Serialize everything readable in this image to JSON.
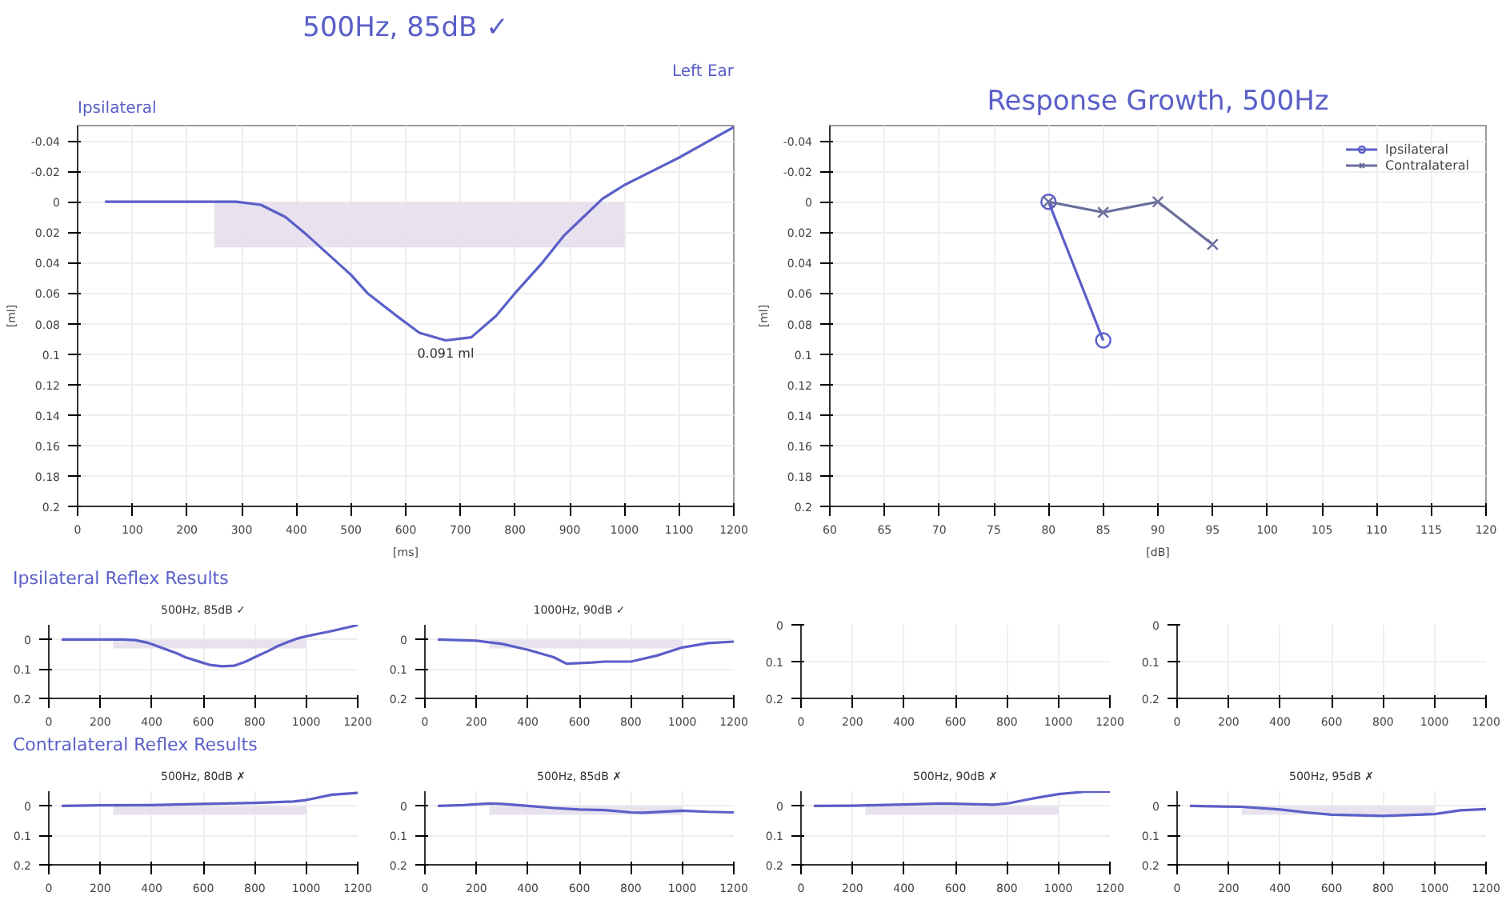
{
  "chart_data": [
    {
      "type": "line",
      "title": "500Hz, 85dB ✓",
      "annotations": [
        "Ipsilateral",
        "Left Ear",
        {
          "text": "0.091 ml",
          "x": 673,
          "y": 0.091
        }
      ],
      "xlabel": "[ms]",
      "ylabel": "[ml]",
      "xlim": [
        0,
        1200
      ],
      "ylim": [
        0.2,
        -0.05
      ],
      "xticks": [
        0,
        100,
        200,
        300,
        400,
        500,
        600,
        700,
        800,
        900,
        1000,
        1100,
        1200
      ],
      "yticks": [
        -0.04,
        -0.02,
        0,
        0.02,
        0.04,
        0.06,
        0.08,
        0.1,
        0.12,
        0.14,
        0.16,
        0.18,
        0.2
      ],
      "grid": true,
      "series": [
        {
          "type": "area",
          "color": "#e4dfec",
          "x": [
            250,
            1000
          ],
          "values": [
            0.03,
            0.03
          ]
        },
        {
          "color": "#5a5fc8",
          "x": [
            50,
            290,
            335,
            380,
            420,
            460,
            500,
            530,
            580,
            625,
            673,
            720,
            765,
            800,
            850,
            890,
            925,
            960,
            1000,
            1050,
            1100,
            1150,
            1200
          ],
          "values": [
            0,
            0,
            0.002,
            0.01,
            0.022,
            0.035,
            0.048,
            0.06,
            0.074,
            0.086,
            0.091,
            0.089,
            0.075,
            0.06,
            0.04,
            0.022,
            0.01,
            -0.002,
            -0.011,
            -0.02,
            -0.029,
            -0.039,
            -0.049
          ]
        }
      ]
    },
    {
      "type": "line",
      "title": "Response Growth, 500Hz",
      "xlabel": "[dB]",
      "ylabel": "[ml]",
      "xlim": [
        60,
        120
      ],
      "ylim": [
        0.2,
        -0.05
      ],
      "xticks": [
        60,
        65,
        70,
        75,
        80,
        85,
        90,
        95,
        100,
        105,
        110,
        115,
        120
      ],
      "yticks": [
        -0.04,
        -0.02,
        0,
        0.02,
        0.04,
        0.06,
        0.08,
        0.1,
        0.12,
        0.14,
        0.16,
        0.18,
        0.2
      ],
      "grid": true,
      "legend": "top right",
      "series": [
        {
          "name": "Ipsilateral",
          "color": "#5a5fc8",
          "marker": "circle",
          "x": [
            80,
            85
          ],
          "values": [
            0,
            0.091
          ]
        },
        {
          "name": "Contralateral",
          "color": "#6a6e9c",
          "marker": "cross",
          "x": [
            80,
            85,
            90,
            95
          ],
          "values": [
            0,
            0.007,
            0,
            0.028
          ]
        }
      ]
    },
    {
      "type": "line",
      "title": "500Hz, 85dB ✓",
      "annotations": [
        "Ipsilateral Reflex Results"
      ],
      "xlim": [
        0,
        1200
      ],
      "ylim": [
        0.2,
        -0.05
      ],
      "xticks": [
        0,
        200,
        400,
        600,
        800,
        1000,
        1200
      ],
      "yticks": [
        0,
        0.1,
        0.2
      ],
      "grid": true,
      "series": [
        {
          "type": "area",
          "color": "#e4dfec",
          "x": [
            250,
            1000
          ],
          "values": [
            0.03,
            0.03
          ]
        },
        {
          "color": "#5a5fc8",
          "x": [
            50,
            290,
            335,
            380,
            420,
            460,
            500,
            530,
            580,
            625,
            673,
            720,
            765,
            800,
            850,
            890,
            925,
            960,
            1000,
            1050,
            1100,
            1150,
            1200
          ],
          "values": [
            0,
            0,
            0.002,
            0.01,
            0.022,
            0.035,
            0.048,
            0.06,
            0.074,
            0.086,
            0.091,
            0.089,
            0.075,
            0.06,
            0.04,
            0.022,
            0.01,
            -0.002,
            -0.011,
            -0.02,
            -0.029,
            -0.039,
            -0.049
          ]
        }
      ]
    },
    {
      "type": "line",
      "title": "1000Hz, 90dB ✓",
      "xlim": [
        0,
        1200
      ],
      "ylim": [
        0.2,
        -0.05
      ],
      "xticks": [
        0,
        200,
        400,
        600,
        800,
        1000,
        1200
      ],
      "yticks": [
        0,
        0.1,
        0.2
      ],
      "grid": true,
      "series": [
        {
          "type": "area",
          "color": "#e4dfec",
          "x": [
            250,
            1000
          ],
          "values": [
            0.03,
            0.03
          ]
        },
        {
          "color": "#5a5fc8",
          "x": [
            50,
            200,
            300,
            400,
            500,
            550,
            650,
            700,
            800,
            900,
            1000,
            1100,
            1200
          ],
          "values": [
            0,
            0.004,
            0.015,
            0.035,
            0.06,
            0.082,
            0.078,
            0.075,
            0.075,
            0.055,
            0.027,
            0.012,
            0.007
          ]
        }
      ]
    },
    {
      "type": "line",
      "xlim": [
        0,
        1200
      ],
      "ylim": [
        0.2,
        0
      ],
      "xticks": [
        0,
        200,
        400,
        600,
        800,
        1000,
        1200
      ],
      "yticks": [
        0,
        0.1,
        0.2
      ],
      "grid": true
    },
    {
      "type": "line",
      "xlim": [
        0,
        1200
      ],
      "ylim": [
        0.2,
        0
      ],
      "xticks": [
        0,
        200,
        400,
        600,
        800,
        1000,
        1200
      ],
      "yticks": [
        0,
        0.1,
        0.2
      ],
      "grid": true
    },
    {
      "type": "line",
      "title": "500Hz, 80dB ✗",
      "annotations": [
        "Contralateral Reflex Results"
      ],
      "xlim": [
        0,
        1200
      ],
      "ylim": [
        0.2,
        -0.05
      ],
      "xticks": [
        0,
        200,
        400,
        600,
        800,
        1000,
        1200
      ],
      "yticks": [
        0,
        0.1,
        0.2
      ],
      "grid": true,
      "series": [
        {
          "type": "area",
          "color": "#e4dfec",
          "x": [
            250,
            1000
          ],
          "values": [
            0.03,
            0.03
          ]
        },
        {
          "color": "#5a5fc8",
          "x": [
            50,
            200,
            400,
            600,
            800,
            950,
            1000,
            1100,
            1200
          ],
          "values": [
            0,
            -0.002,
            -0.003,
            -0.007,
            -0.01,
            -0.015,
            -0.02,
            -0.038,
            -0.044
          ]
        }
      ]
    },
    {
      "type": "line",
      "title": "500Hz, 85dB ✗",
      "xlim": [
        0,
        1200
      ],
      "ylim": [
        0.2,
        -0.05
      ],
      "xticks": [
        0,
        200,
        400,
        600,
        800,
        1000,
        1200
      ],
      "yticks": [
        0,
        0.1,
        0.2
      ],
      "grid": true,
      "series": [
        {
          "type": "area",
          "color": "#e4dfec",
          "x": [
            250,
            1000
          ],
          "values": [
            0.03,
            0.03
          ]
        },
        {
          "color": "#5a5fc8",
          "x": [
            50,
            150,
            250,
            300,
            400,
            500,
            600,
            700,
            800,
            850,
            1000,
            1100,
            1200
          ],
          "values": [
            0,
            -0.003,
            -0.008,
            -0.007,
            0,
            0.007,
            0.012,
            0.014,
            0.022,
            0.023,
            0.016,
            0.02,
            0.022
          ]
        }
      ]
    },
    {
      "type": "line",
      "title": "500Hz, 90dB ✗",
      "xlim": [
        0,
        1200
      ],
      "ylim": [
        0.2,
        -0.05
      ],
      "xticks": [
        0,
        200,
        400,
        600,
        800,
        1000,
        1200
      ],
      "yticks": [
        0,
        0.1,
        0.2
      ],
      "grid": true,
      "series": [
        {
          "type": "area",
          "color": "#e4dfec",
          "x": [
            250,
            1000
          ],
          "values": [
            0.03,
            0.03
          ]
        },
        {
          "color": "#5a5fc8",
          "x": [
            50,
            200,
            400,
            550,
            750,
            800,
            900,
            1000,
            1100,
            1200
          ],
          "values": [
            0,
            -0.001,
            -0.005,
            -0.008,
            -0.004,
            -0.008,
            -0.025,
            -0.04,
            -0.048,
            -0.049
          ]
        }
      ]
    },
    {
      "type": "line",
      "title": "500Hz, 95dB ✗",
      "xlim": [
        0,
        1200
      ],
      "ylim": [
        0.2,
        -0.05
      ],
      "xticks": [
        0,
        200,
        400,
        600,
        800,
        1000,
        1200
      ],
      "yticks": [
        0,
        0.1,
        0.2
      ],
      "grid": true,
      "series": [
        {
          "type": "area",
          "color": "#e4dfec",
          "x": [
            250,
            1000
          ],
          "values": [
            0.03,
            0.03
          ]
        },
        {
          "color": "#5a5fc8",
          "x": [
            50,
            250,
            400,
            500,
            600,
            800,
            1000,
            1100,
            1200
          ],
          "values": [
            0,
            0.003,
            0.012,
            0.022,
            0.03,
            0.034,
            0.028,
            0.015,
            0.011
          ]
        }
      ]
    }
  ]
}
